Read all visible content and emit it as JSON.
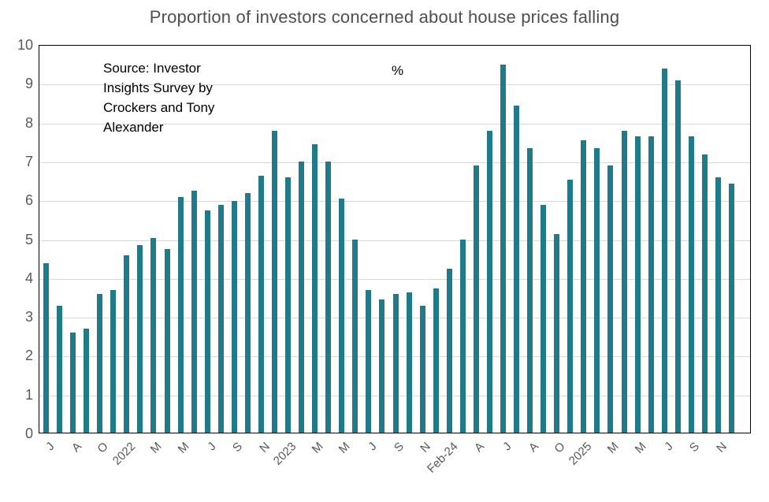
{
  "annotations": {
    "source_note": "Source: Investor\nInsights Survey by\nCrockers and Tony\nAlexander",
    "unit_label": "%"
  },
  "chart_data": {
    "type": "bar",
    "title": "Proportion of investors concerned about house prices falling",
    "xlabel": "",
    "ylabel": "%",
    "ylim": [
      0,
      10
    ],
    "y_ticks": [
      0,
      1,
      2,
      3,
      4,
      5,
      6,
      7,
      8,
      9,
      10
    ],
    "grid": true,
    "legend_position": "none",
    "bar_color": "#217a8a",
    "gridline_color": "#d9d9d9",
    "axis_line_color": "#000000",
    "tick_text_color": "#595959",
    "title_color": "#4f4f4f",
    "source_note": "Source: Investor Insights Survey by Crockers and Tony Alexander",
    "categories": [
      "J",
      "",
      "A",
      "",
      "O",
      "",
      "2022",
      "",
      "M",
      "",
      "M",
      "",
      "J",
      "",
      "S",
      "",
      "N",
      "",
      "2023",
      "",
      "M",
      "",
      "M",
      "",
      "J",
      "",
      "S",
      "",
      "N",
      "",
      "Feb-24",
      "",
      "A",
      "",
      "J",
      "",
      "A",
      "",
      "O",
      "",
      "2025",
      "",
      "M",
      "",
      "M",
      "",
      "J",
      "",
      "S",
      "",
      "N",
      ""
    ],
    "values": [
      4.4,
      3.3,
      2.6,
      2.7,
      3.6,
      3.7,
      4.6,
      4.85,
      5.05,
      4.75,
      6.1,
      6.25,
      5.75,
      5.9,
      6.0,
      6.2,
      6.65,
      7.8,
      6.6,
      7.0,
      7.45,
      7.0,
      6.05,
      5.0,
      3.7,
      3.45,
      3.6,
      3.65,
      3.3,
      3.75,
      4.25,
      5.0,
      6.9,
      7.8,
      9.5,
      8.45,
      7.35,
      5.9,
      5.15,
      6.55,
      7.55,
      7.35,
      6.9,
      7.8,
      7.65,
      7.65,
      9.4,
      9.1,
      7.65,
      7.2,
      6.6,
      6.45
    ]
  }
}
